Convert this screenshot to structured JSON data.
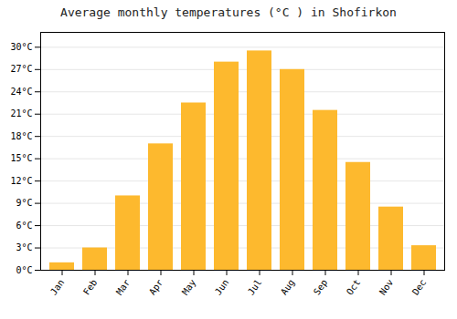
{
  "chart_data": {
    "type": "bar",
    "title": "Average monthly temperatures (°C ) in Shofirkon",
    "categories": [
      "Jan",
      "Feb",
      "Mar",
      "Apr",
      "May",
      "Jun",
      "Jul",
      "Aug",
      "Sep",
      "Oct",
      "Nov",
      "Dec"
    ],
    "values": [
      1.0,
      3.0,
      10.0,
      17.0,
      22.5,
      28.0,
      29.5,
      27.0,
      21.5,
      14.5,
      8.5,
      3.3
    ],
    "color": "#FDB92E",
    "ylim": [
      0,
      32
    ],
    "yticks": [
      {
        "value": 0,
        "label": "0°C"
      },
      {
        "value": 3,
        "label": "3°C"
      },
      {
        "value": 6,
        "label": "6°C"
      },
      {
        "value": 9,
        "label": "9°C"
      },
      {
        "value": 12,
        "label": "12°C"
      },
      {
        "value": 15,
        "label": "15°C"
      },
      {
        "value": 18,
        "label": "18°C"
      },
      {
        "value": 21,
        "label": "21°C"
      },
      {
        "value": 24,
        "label": "24°C"
      },
      {
        "value": 27,
        "label": "27°C"
      },
      {
        "value": 30,
        "label": "30°C"
      }
    ],
    "grid": true
  }
}
